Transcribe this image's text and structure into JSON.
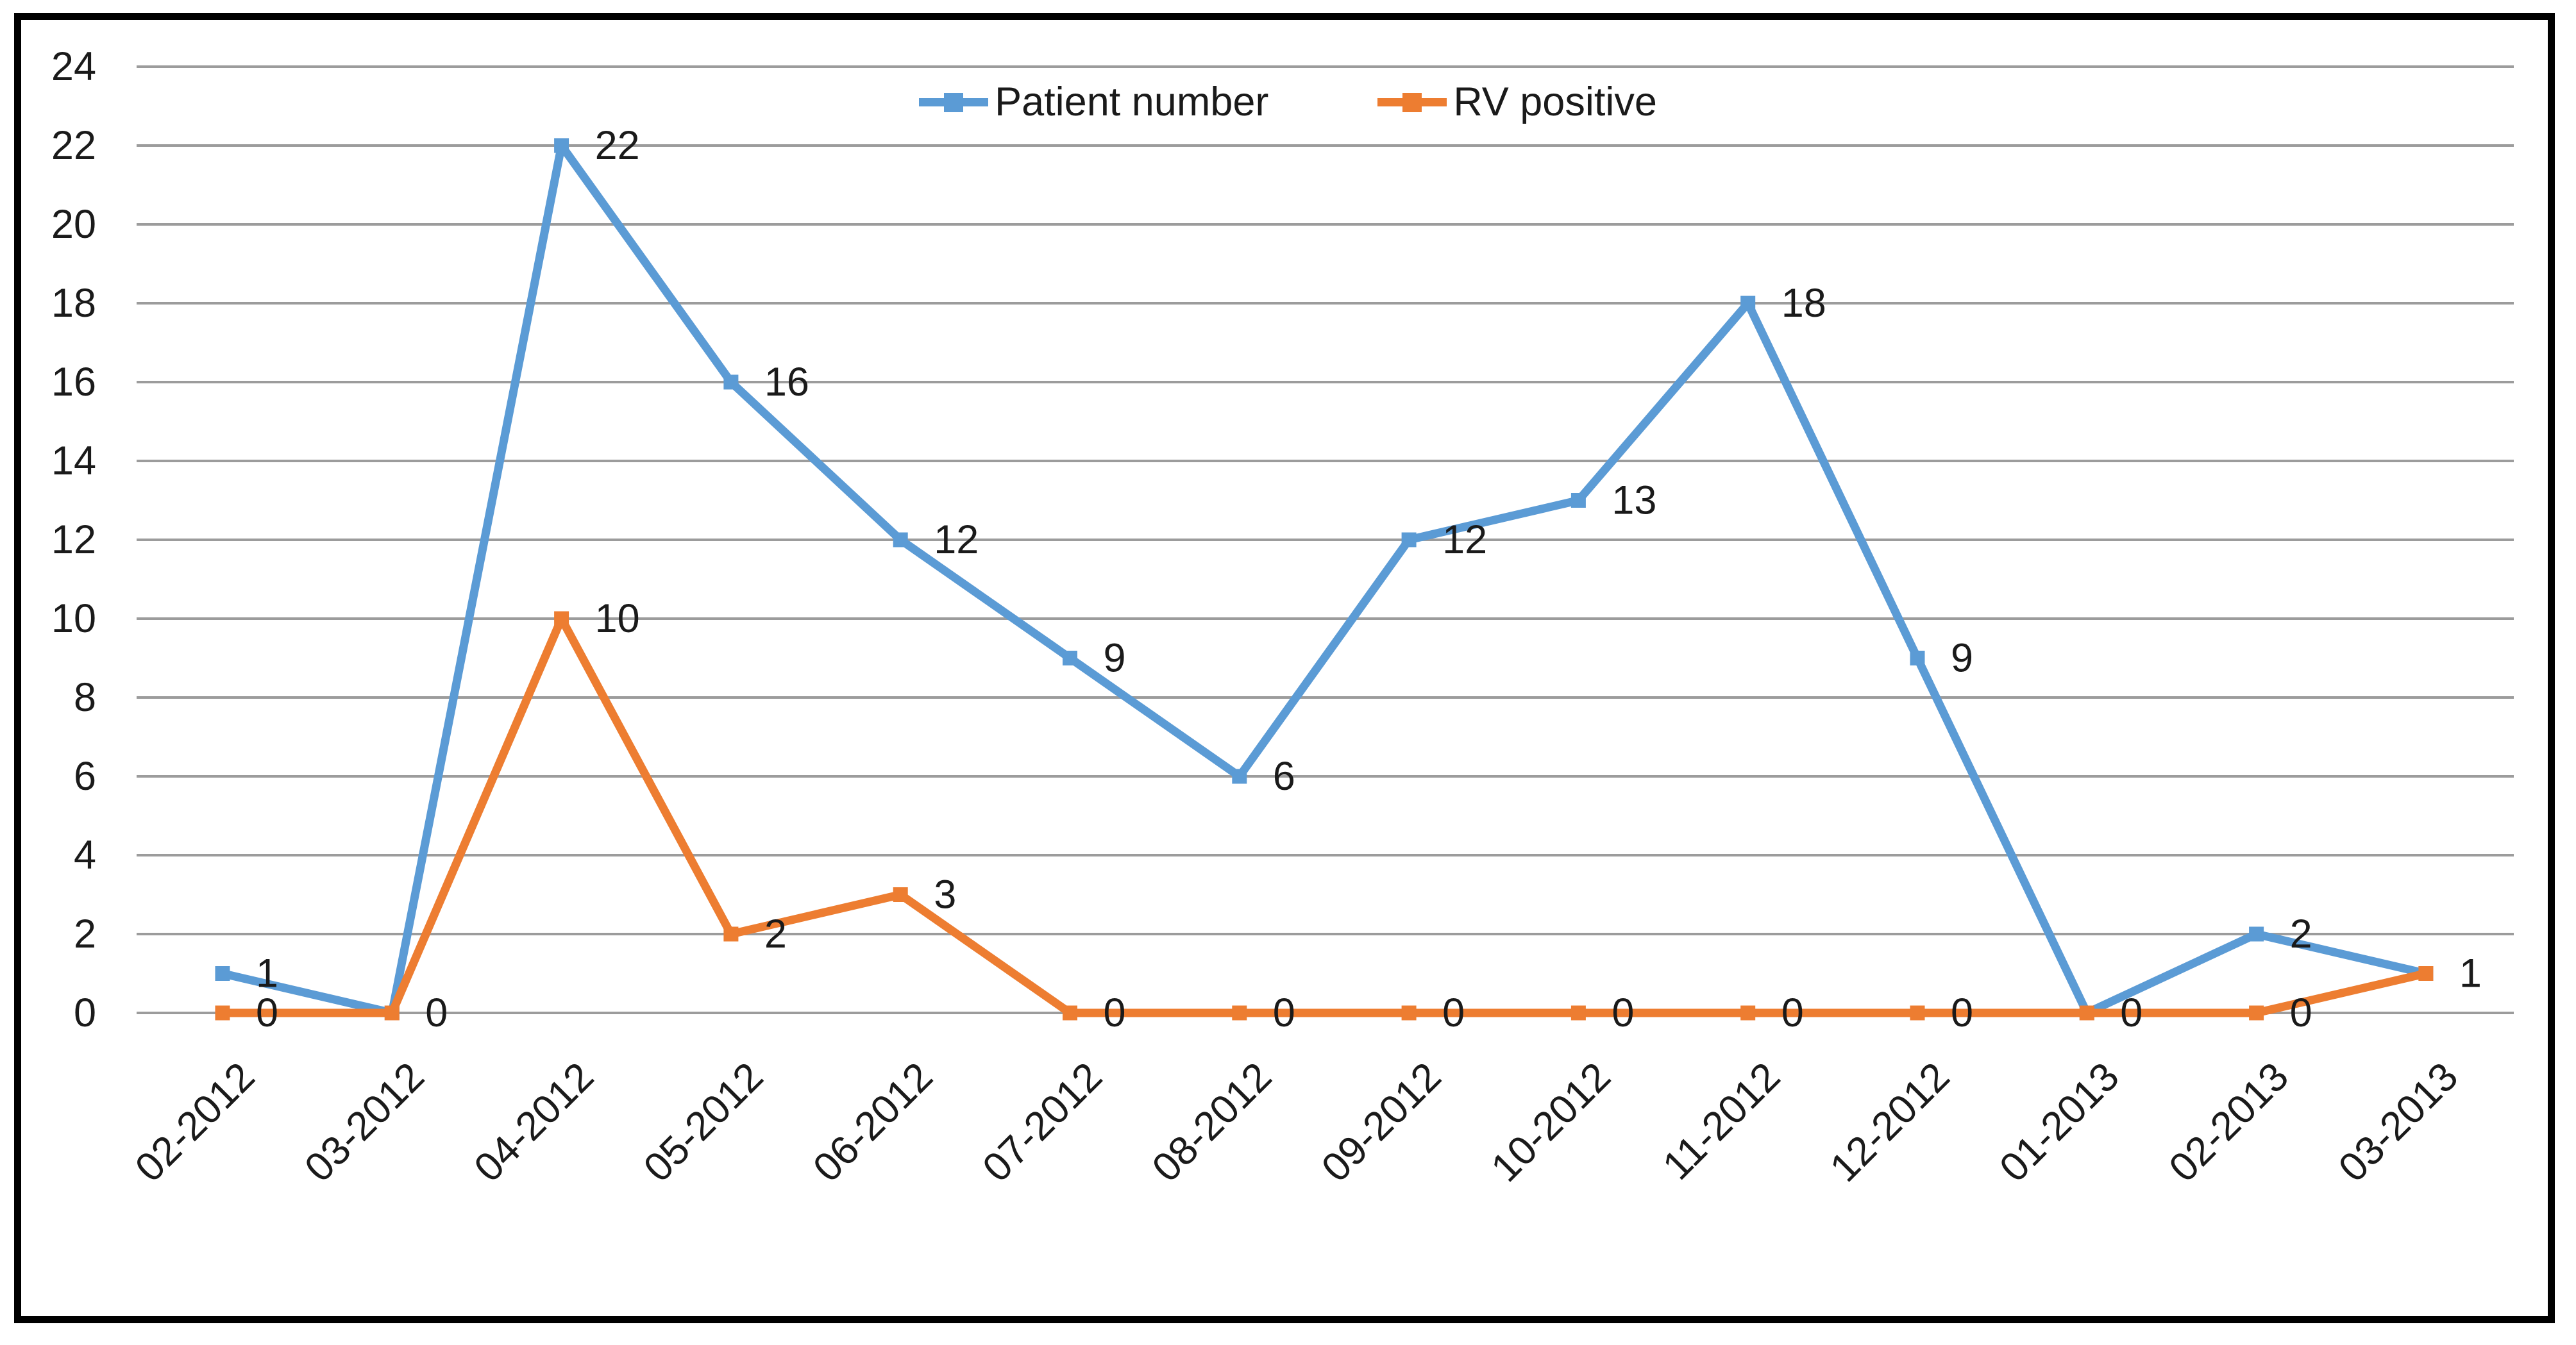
{
  "chart_data": {
    "type": "line",
    "title": "",
    "xlabel": "",
    "ylabel": "",
    "categories": [
      "02-2012",
      "03-2012",
      "04-2012",
      "05-2012",
      "06-2012",
      "07-2012",
      "08-2012",
      "09-2012",
      "10-2012",
      "11-2012",
      "12-2012",
      "01-2013",
      "02-2013",
      "03-2013"
    ],
    "series": [
      {
        "name": "Patient number",
        "color": "#5B9BD5",
        "values": [
          1,
          0,
          22,
          16,
          12,
          9,
          6,
          12,
          13,
          18,
          9,
          0,
          2,
          1
        ],
        "data_labels": [
          "1",
          null,
          "22",
          "16",
          "12",
          "9",
          "6",
          "12",
          "13",
          "18",
          "9",
          null,
          "2",
          "1"
        ]
      },
      {
        "name": "RV positive",
        "color": "#ED7D31",
        "values": [
          0,
          0,
          10,
          2,
          3,
          0,
          0,
          0,
          0,
          0,
          0,
          0,
          0,
          1
        ],
        "data_labels": [
          "0",
          "0",
          "10",
          "2",
          "3",
          "0",
          "0",
          "0",
          "0",
          "0",
          "0",
          "0",
          "0",
          null
        ]
      }
    ],
    "ylim": [
      0,
      24
    ],
    "yticks": [
      0,
      2,
      4,
      6,
      8,
      10,
      12,
      14,
      16,
      18,
      20,
      22,
      24
    ],
    "grid": true,
    "legend_position": "top-center",
    "marker_shape": "square",
    "colors": {
      "gridline": "#9C9C9C",
      "text": "#1A1A1A",
      "background": "#FFFFFF",
      "border": "#000000"
    }
  }
}
